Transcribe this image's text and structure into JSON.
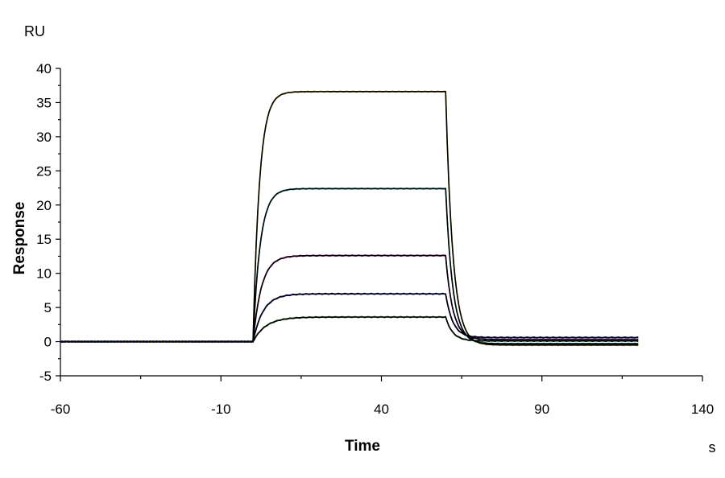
{
  "chart_data": {
    "type": "line",
    "y_unit": "RU",
    "x_unit": "s",
    "xlabel": "Time",
    "ylabel": "Response",
    "xlim": [
      -60,
      140
    ],
    "ylim": [
      -5,
      40
    ],
    "x_ticks": [
      -60,
      -10,
      40,
      90,
      140
    ],
    "y_ticks": [
      40,
      35,
      30,
      25,
      20,
      15,
      10,
      5,
      0,
      -5
    ],
    "grid": false,
    "legend": "none",
    "injection": {
      "start": 0,
      "end": 60
    },
    "series": [
      {
        "plateau": 36.6,
        "color": "#e0a000",
        "k": 0.5,
        "residual": -0.5
      },
      {
        "plateau": 22.4,
        "color": "#00b0b0",
        "k": 0.45,
        "residual": -0.3
      },
      {
        "plateau": 12.6,
        "color": "#b000b0",
        "k": 0.38,
        "residual": 0.3
      },
      {
        "plateau": 7.0,
        "color": "#0000d0",
        "k": 0.32,
        "residual": 0.6
      },
      {
        "plateau": 3.6,
        "color": "#006000",
        "k": 0.25,
        "residual": 0.1
      }
    ],
    "fit_color": "#000000"
  }
}
